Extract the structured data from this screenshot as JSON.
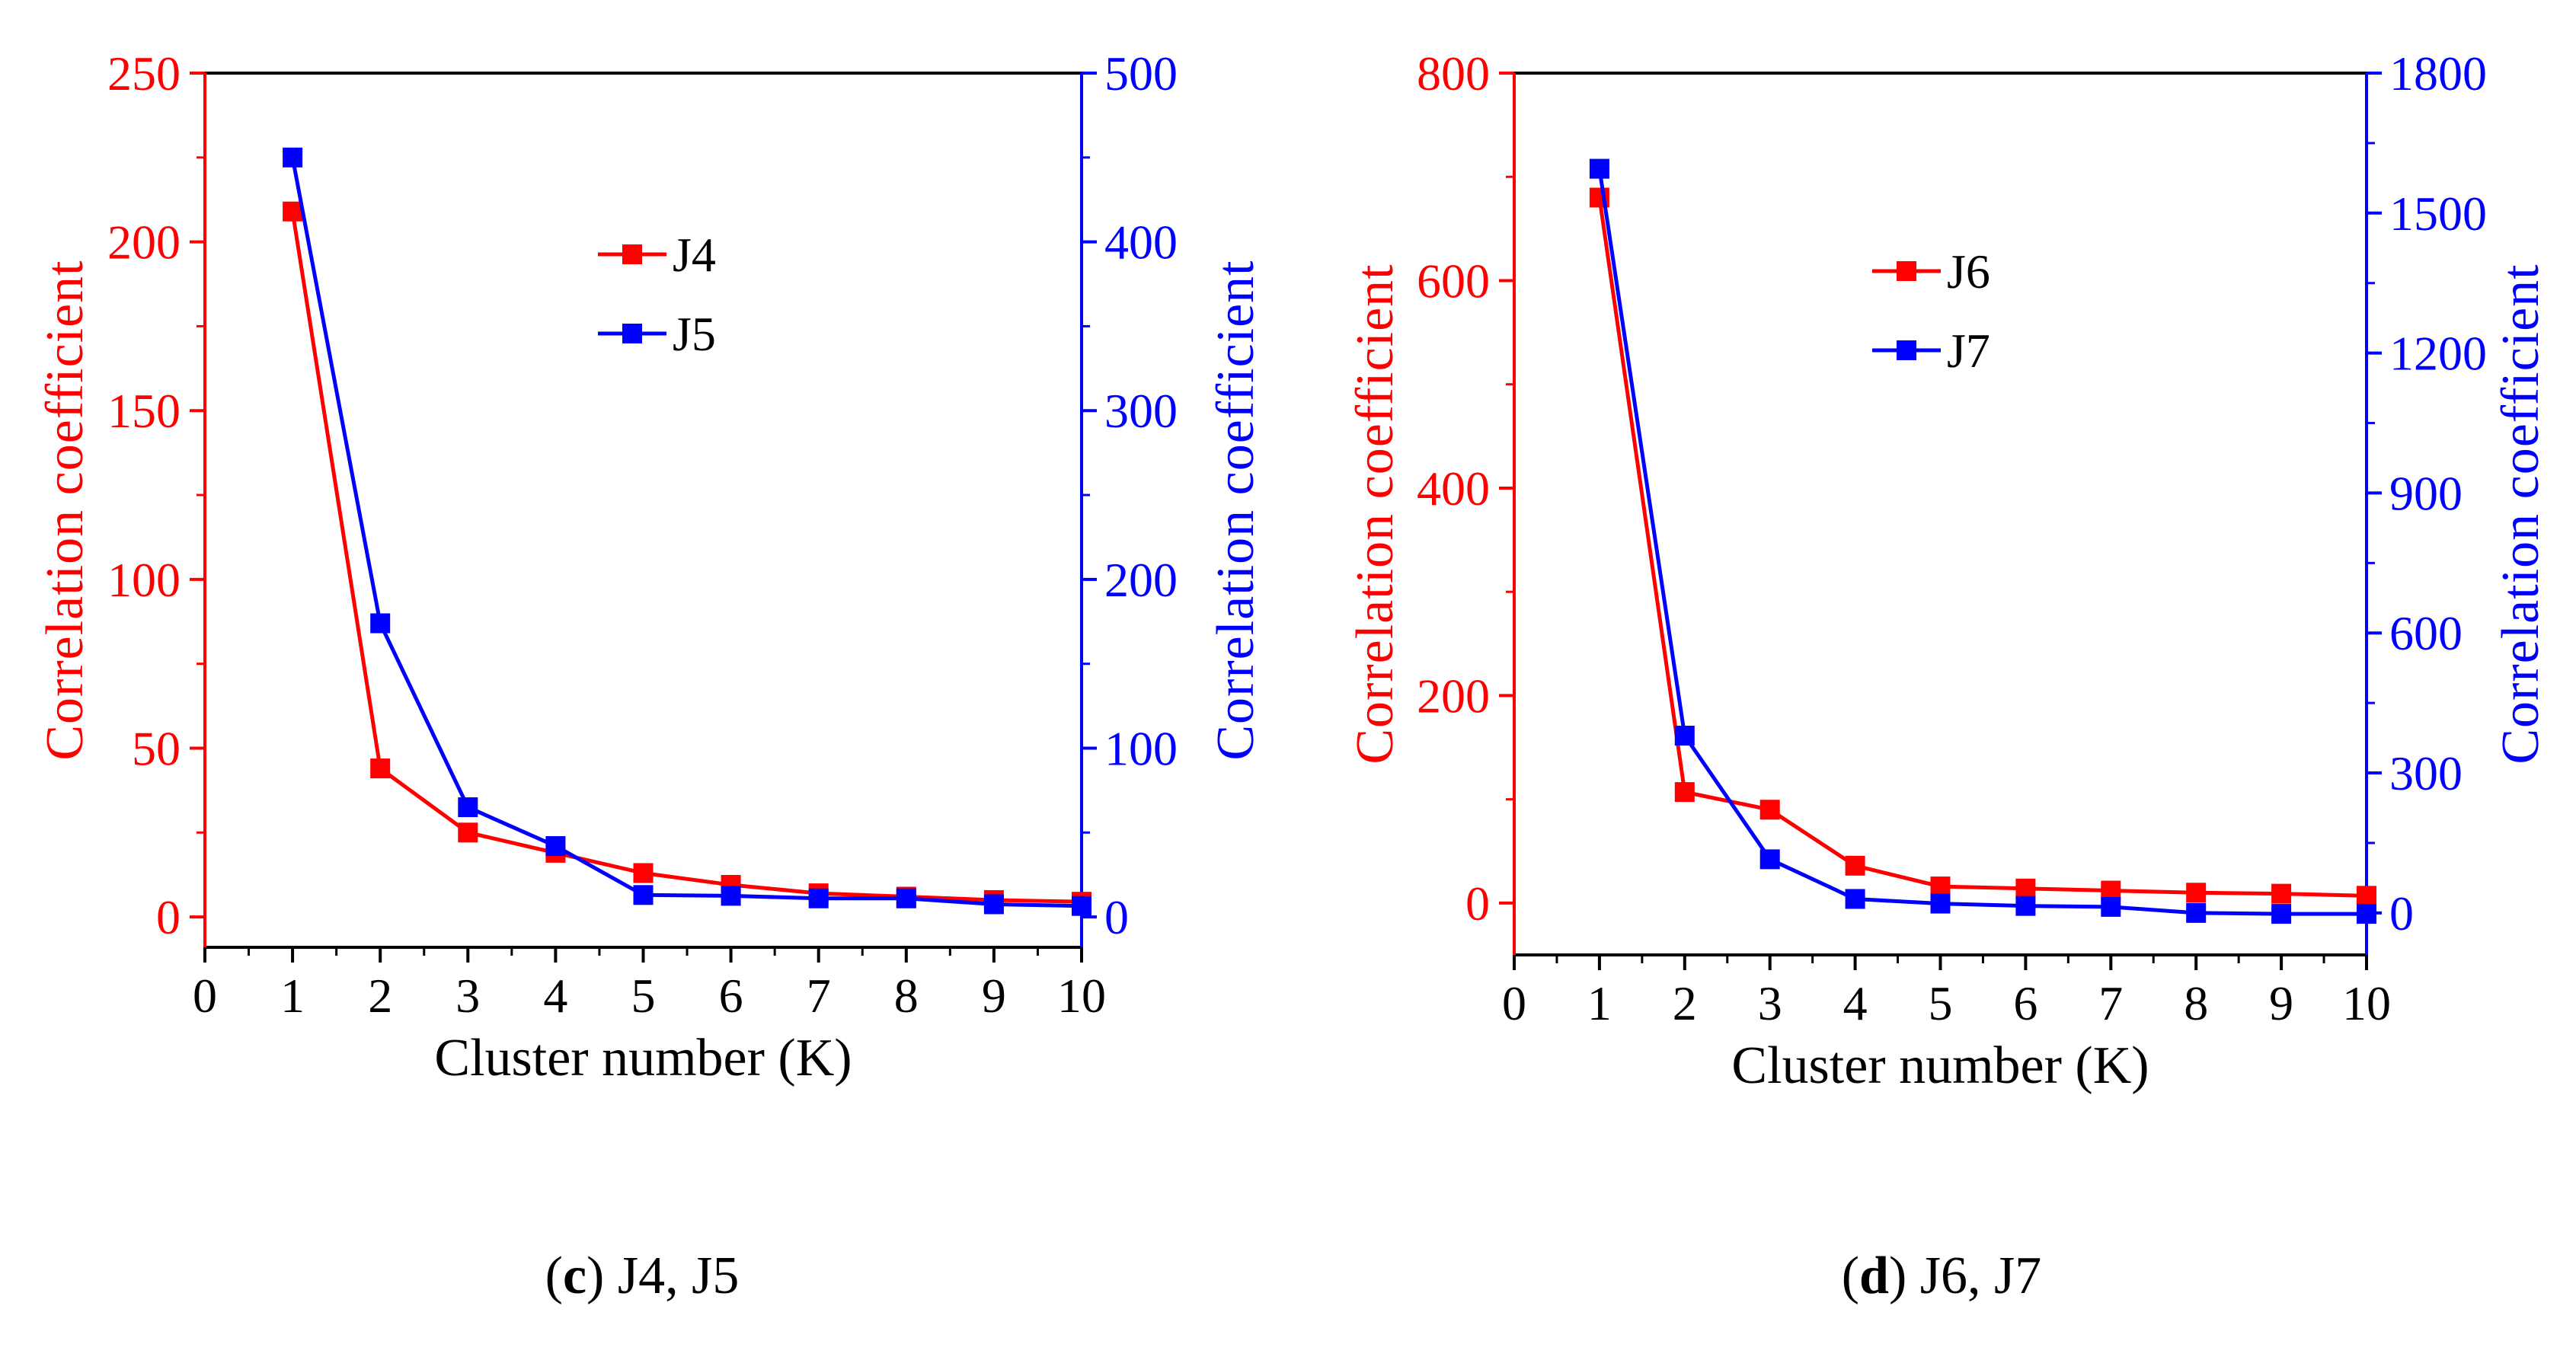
{
  "colors": {
    "red": "#ff0000",
    "blue": "#0000ff",
    "axis": "#000000"
  },
  "chart_data": [
    {
      "id": "c",
      "type": "line",
      "caption_letter": "c",
      "caption_rest": " J4, J5",
      "xlabel": "Cluster number (K)",
      "ylabel_left": "Correlation coefficient",
      "ylabel_right": "Correlation coefficient",
      "xlim": [
        0,
        10
      ],
      "xticks": [
        0,
        1,
        2,
        3,
        4,
        5,
        6,
        7,
        8,
        9,
        10
      ],
      "ylim_left": [
        -9,
        250
      ],
      "yticks_left": [
        0,
        50,
        100,
        150,
        200,
        250
      ],
      "ylim_right": [
        -18,
        500
      ],
      "yticks_right": [
        0,
        100,
        200,
        300,
        400,
        500
      ],
      "series": [
        {
          "name": "J4",
          "axis": "left",
          "color": "#ff0000",
          "x": [
            1,
            2,
            3,
            4,
            5,
            6,
            7,
            8,
            9,
            10
          ],
          "values": [
            209,
            44,
            25,
            19,
            13,
            9.5,
            7,
            6,
            5,
            4.5
          ]
        },
        {
          "name": "J5",
          "axis": "right",
          "color": "#0000ff",
          "x": [
            1,
            2,
            3,
            4,
            5,
            6,
            7,
            8,
            9,
            10
          ],
          "values": [
            450,
            174,
            65,
            42,
            13,
            12.5,
            11,
            11,
            7.5,
            6.5
          ]
        }
      ],
      "legend_position": "upper-center"
    },
    {
      "id": "d",
      "type": "line",
      "caption_letter": "d",
      "caption_rest": " J6, J7",
      "xlabel": "Cluster number (K)",
      "ylabel_left": "Correlation coefficient",
      "ylabel_right": "Correlation coefficient",
      "xlim": [
        0,
        10
      ],
      "xticks": [
        0,
        1,
        2,
        3,
        4,
        5,
        6,
        7,
        8,
        9,
        10
      ],
      "ylim_left": [
        -50,
        800
      ],
      "yticks_left": [
        0,
        200,
        400,
        600,
        800
      ],
      "ylim_right": [
        -90,
        1800
      ],
      "yticks_right": [
        0,
        300,
        600,
        900,
        1200,
        1500,
        1800
      ],
      "series": [
        {
          "name": "J6",
          "axis": "left",
          "color": "#ff0000",
          "x": [
            1,
            2,
            3,
            4,
            5,
            6,
            7,
            8,
            9,
            10
          ],
          "values": [
            680,
            107,
            90,
            36,
            16,
            14,
            12,
            10,
            9,
            7
          ]
        },
        {
          "name": "J7",
          "axis": "right",
          "color": "#0000ff",
          "x": [
            1,
            2,
            3,
            4,
            5,
            6,
            7,
            8,
            9,
            10
          ],
          "values": [
            1595,
            380,
            115,
            30,
            20,
            15,
            13,
            0,
            -2,
            -2
          ]
        }
      ],
      "legend_position": "upper-center"
    }
  ]
}
